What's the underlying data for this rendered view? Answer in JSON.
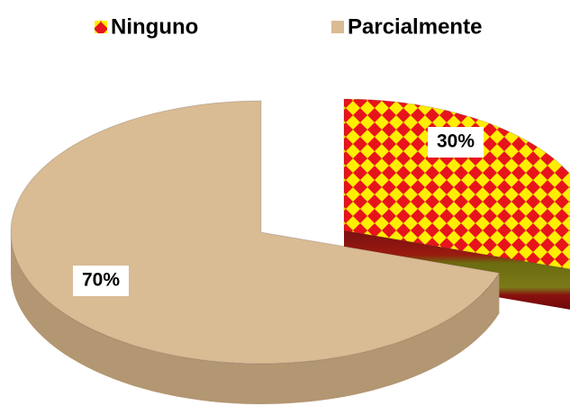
{
  "chart_data": {
    "type": "pie",
    "categories": [
      "Ninguno",
      "Parcialmente"
    ],
    "values": [
      30,
      70
    ],
    "value_labels": [
      "30%",
      "70%"
    ],
    "colors": [
      "#e8141c",
      "#d9bb94"
    ],
    "legend": "top"
  }
}
